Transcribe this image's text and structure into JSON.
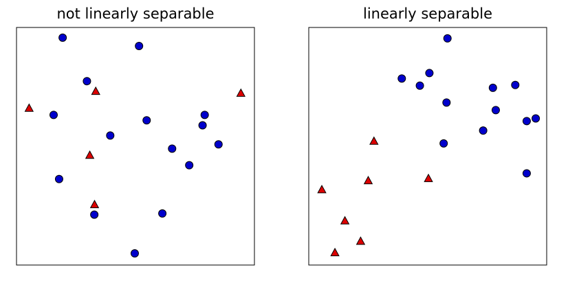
{
  "chart_data": [
    {
      "type": "scatter",
      "title": "not linearly separable",
      "grid": false,
      "xlim": [
        0,
        100
      ],
      "ylim": [
        0,
        100
      ],
      "marker_colors": {
        "circle": "#0000cc",
        "triangle": "#dd0000"
      },
      "series": [
        {
          "marker": "circle",
          "points": [
            {
              "x": 19.4,
              "y": 95.7
            },
            {
              "x": 51.5,
              "y": 92.2
            },
            {
              "x": 29.6,
              "y": 77.4
            },
            {
              "x": 15.6,
              "y": 63.2
            },
            {
              "x": 54.7,
              "y": 60.9
            },
            {
              "x": 79.1,
              "y": 63.2
            },
            {
              "x": 78.2,
              "y": 58.8
            },
            {
              "x": 39.4,
              "y": 54.5
            },
            {
              "x": 84.9,
              "y": 50.8
            },
            {
              "x": 65.4,
              "y": 49.0
            },
            {
              "x": 72.6,
              "y": 42.0
            },
            {
              "x": 17.9,
              "y": 36.2
            },
            {
              "x": 32.7,
              "y": 21.2
            },
            {
              "x": 61.3,
              "y": 21.7
            },
            {
              "x": 49.7,
              "y": 4.9
            }
          ]
        },
        {
          "marker": "triangle",
          "points": [
            {
              "x": 33.3,
              "y": 73.0
            },
            {
              "x": 5.3,
              "y": 65.9
            },
            {
              "x": 94.3,
              "y": 72.2
            },
            {
              "x": 30.8,
              "y": 46.1
            },
            {
              "x": 32.8,
              "y": 25.3
            }
          ]
        }
      ]
    },
    {
      "type": "scatter",
      "title": "linearly separable",
      "grid": false,
      "xlim": [
        0,
        100
      ],
      "ylim": [
        0,
        100
      ],
      "marker_colors": {
        "circle": "#0000cc",
        "triangle": "#dd0000"
      },
      "series": [
        {
          "marker": "circle",
          "points": [
            {
              "x": 58.3,
              "y": 95.4
            },
            {
              "x": 39.1,
              "y": 78.5
            },
            {
              "x": 46.7,
              "y": 75.5
            },
            {
              "x": 50.7,
              "y": 80.8
            },
            {
              "x": 77.4,
              "y": 74.6
            },
            {
              "x": 86.8,
              "y": 75.8
            },
            {
              "x": 57.9,
              "y": 68.4
            },
            {
              "x": 78.6,
              "y": 65.2
            },
            {
              "x": 91.6,
              "y": 60.6
            },
            {
              "x": 95.4,
              "y": 61.7
            },
            {
              "x": 73.3,
              "y": 56.6
            },
            {
              "x": 56.7,
              "y": 51.2
            },
            {
              "x": 91.6,
              "y": 38.6
            }
          ]
        },
        {
          "marker": "triangle",
          "points": [
            {
              "x": 27.4,
              "y": 52.0
            },
            {
              "x": 25.0,
              "y": 35.4
            },
            {
              "x": 50.3,
              "y": 36.3
            },
            {
              "x": 5.5,
              "y": 31.6
            },
            {
              "x": 15.2,
              "y": 18.5
            },
            {
              "x": 21.8,
              "y": 9.9
            },
            {
              "x": 11.0,
              "y": 5.1
            }
          ]
        }
      ]
    }
  ]
}
